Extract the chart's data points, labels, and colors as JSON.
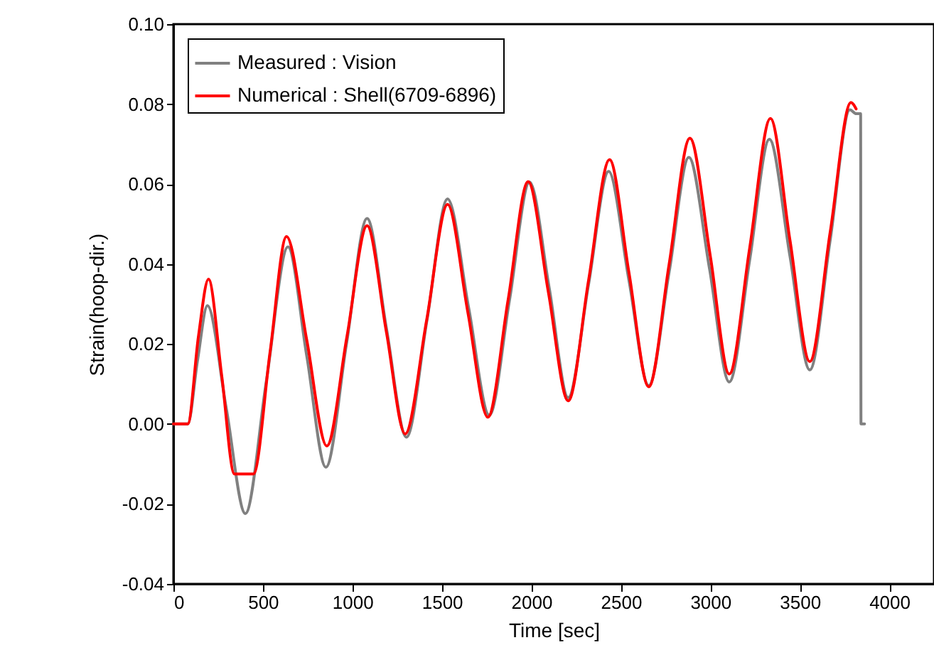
{
  "chart_data": {
    "type": "line",
    "xlabel": "Time [sec]",
    "ylabel": "Strain(hoop-dir.)",
    "xlim": [
      0,
      4250
    ],
    "ylim": [
      -0.04,
      0.1
    ],
    "xticks": [
      0,
      500,
      1000,
      1500,
      2000,
      2500,
      3000,
      3500,
      4000
    ],
    "yticks": [
      {
        "value": -0.04,
        "label": "-0.04"
      },
      {
        "value": -0.02,
        "label": "-0.02"
      },
      {
        "value": 0,
        "label": "0.00"
      },
      {
        "value": 0.02,
        "label": "0.02"
      },
      {
        "value": 0.04,
        "label": "0.04"
      },
      {
        "value": 0.06,
        "label": "0.06"
      },
      {
        "value": 0.08,
        "label": "0.08"
      },
      {
        "value": 0.1,
        "label": "0.10"
      }
    ],
    "legend": "top left",
    "line_style": "solid",
    "series": [
      {
        "name": "Measured : Vision",
        "color": "#808080",
        "x": [
          0,
          80,
          135,
          190,
          295,
          402,
          520,
          640,
          745,
          852,
          967,
          1082,
          1190,
          1302,
          1417,
          1532,
          1650,
          1765,
          1878,
          1990,
          2100,
          2206,
          2320,
          2432,
          2545,
          2656,
          2770,
          2880,
          2995,
          3106,
          3220,
          3330,
          3445,
          3556,
          3670,
          3780,
          3815,
          3840,
          3842,
          3862
        ],
        "values": [
          0,
          0,
          0.016,
          0.0296,
          0.004,
          -0.0224,
          0.011,
          0.0443,
          0.017,
          -0.0108,
          0.02,
          0.0514,
          0.024,
          -0.0033,
          0.026,
          0.0563,
          0.029,
          0.0022,
          0.031,
          0.0605,
          0.034,
          0.0066,
          0.035,
          0.0632,
          0.036,
          0.0096,
          0.038,
          0.0667,
          0.039,
          0.0105,
          0.041,
          0.0712,
          0.042,
          0.0135,
          0.046,
          0.0786,
          0.0776,
          0.0776,
          0,
          0
        ]
      },
      {
        "name": "Numerical : Shell(6709-6896)",
        "color": "#ff0000",
        "x": [
          0,
          80,
          140,
          196,
          270,
          341,
          447,
          540,
          632,
          745,
          857,
          970,
          1082,
          1190,
          1295,
          1415,
          1532,
          1645,
          1757,
          1870,
          1982,
          2095,
          2206,
          2320,
          2437,
          2545,
          2656,
          2770,
          2886,
          3000,
          3106,
          3220,
          3336,
          3445,
          3556,
          3670,
          3786,
          3815
        ],
        "values": [
          0,
          0,
          0.022,
          0.0362,
          0.012,
          -0.0125,
          -0.0125,
          0.018,
          0.0469,
          0.021,
          -0.0055,
          0.022,
          0.0496,
          0.023,
          -0.0025,
          0.026,
          0.0549,
          0.028,
          0.0017,
          0.031,
          0.0606,
          0.033,
          0.0058,
          0.036,
          0.0661,
          0.038,
          0.0093,
          0.04,
          0.0715,
          0.042,
          0.0125,
          0.044,
          0.0764,
          0.046,
          0.0156,
          0.048,
          0.0804,
          0.0788
        ]
      }
    ]
  }
}
